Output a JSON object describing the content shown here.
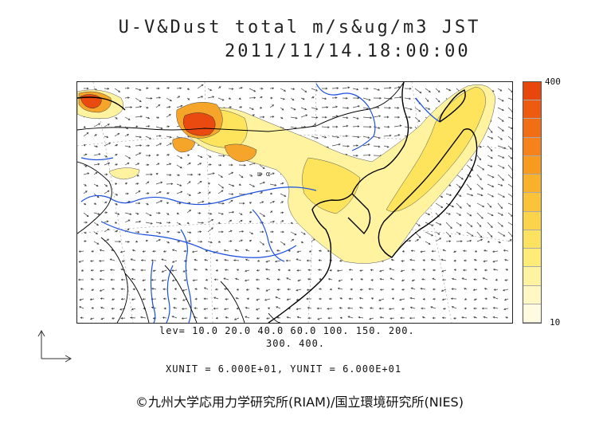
{
  "title": {
    "line1": "U-V&Dust total m/s&ug/m3 JST",
    "line2": "2011/11/14.18:00:00"
  },
  "colorbar": {
    "max_label": "400",
    "min_label": "10",
    "colors": [
      "#e8470c",
      "#ee5a10",
      "#f26e14",
      "#f5821a",
      "#f79a20",
      "#f9b02a",
      "#fbc33a",
      "#fcd44c",
      "#fde160",
      "#feec78",
      "#fef3a0",
      "#fff8c2",
      "#fffbe0"
    ]
  },
  "levels": {
    "line1": "lev= 10.0 20.0 40.0 60.0 100. 150. 200.",
    "line2": "300. 400."
  },
  "units": "XUNIT = 6.000E+01, YUNIT = 6.000E+01",
  "footer": "©九州大学応用力学研究所(RIAM)/国立環境研究所(NIES)",
  "map": {
    "place_label": "ш α",
    "dust_colors": {
      "light": "#fff3a0",
      "mid": "#fde45c",
      "orange": "#f5a52a",
      "red": "#ea4a10"
    }
  }
}
